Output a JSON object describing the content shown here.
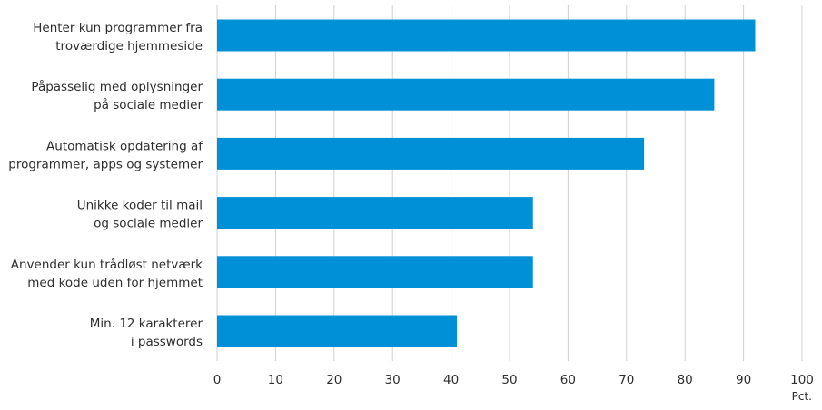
{
  "chart_data": {
    "type": "bar",
    "orientation": "horizontal",
    "categories": [
      [
        "Henter kun programmer fra",
        "troværdige hjemmeside"
      ],
      [
        "Påpasselig med oplysninger",
        "på sociale medier"
      ],
      [
        "Automatisk opdatering af",
        "programmer, apps og systemer"
      ],
      [
        "Unikke koder til mail",
        "og sociale medier"
      ],
      [
        "Anvender kun trådløst netværk",
        "med kode uden for hjemmet"
      ],
      [
        "Min. 12 karakterer",
        "i passwords"
      ]
    ],
    "values": [
      92,
      85,
      73,
      54,
      54,
      41
    ],
    "xlim": [
      0,
      100
    ],
    "xticks": [
      0,
      10,
      20,
      30,
      40,
      50,
      60,
      70,
      80,
      90,
      100
    ],
    "xunit": "Pct.",
    "grid": true,
    "bar_color": "#0090d8",
    "grid_color": "#d0d0d0"
  }
}
